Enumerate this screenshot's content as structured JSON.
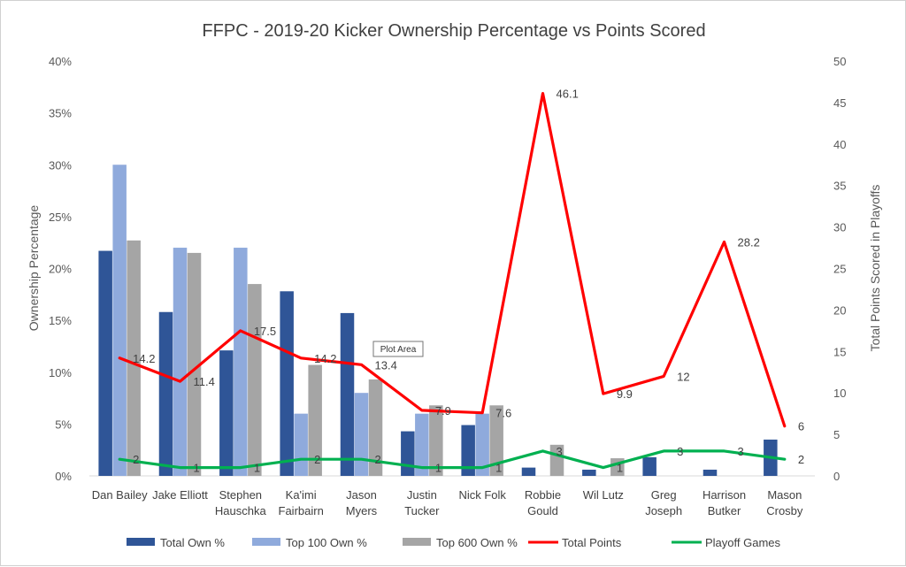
{
  "chart_data": {
    "type": "bar",
    "title": "FFPC - 2019-20 Kicker Ownership Percentage vs Points Scored",
    "ylabel": "Ownership Percentage",
    "y2label": "Total Points Scored in Playoffs",
    "ylim": [
      0,
      40
    ],
    "y2lim": [
      0,
      50
    ],
    "yticks": [
      "0%",
      "5%",
      "10%",
      "15%",
      "20%",
      "25%",
      "30%",
      "35%",
      "40%"
    ],
    "y2ticks": [
      "0",
      "5",
      "10",
      "15",
      "20",
      "25",
      "30",
      "35",
      "40",
      "45",
      "50"
    ],
    "categories": [
      [
        "Dan Bailey"
      ],
      [
        "Jake Elliott"
      ],
      [
        "Stephen",
        "Hauschka"
      ],
      [
        "Ka'imi",
        "Fairbairn"
      ],
      [
        "Jason",
        "Myers"
      ],
      [
        "Justin",
        "Tucker"
      ],
      [
        "Nick Folk"
      ],
      [
        "Robbie",
        "Gould"
      ],
      [
        "Wil Lutz"
      ],
      [
        "Greg",
        "Joseph"
      ],
      [
        "Harrison",
        "Butker"
      ],
      [
        "Mason",
        "Crosby"
      ]
    ],
    "bar_series": [
      {
        "name": "Total Own %",
        "color": "#2F5597",
        "values": [
          21.7,
          15.8,
          12.1,
          17.8,
          15.7,
          4.3,
          4.9,
          0.8,
          0.6,
          1.8,
          0.6,
          3.5
        ]
      },
      {
        "name": "Top 100 Own %",
        "color": "#8FAADC",
        "values": [
          30.0,
          22.0,
          22.0,
          6.0,
          8.0,
          6.0,
          6.0,
          0,
          0,
          0,
          0,
          0
        ]
      },
      {
        "name": "Top 600 Own %",
        "color": "#A5A5A5",
        "values": [
          22.7,
          21.5,
          18.5,
          10.7,
          9.3,
          6.8,
          6.8,
          3.0,
          1.7,
          0,
          0,
          0
        ]
      }
    ],
    "line_series": [
      {
        "name": "Total Points",
        "color": "#FF0000",
        "axis": "secondary",
        "values": [
          14.2,
          11.4,
          17.5,
          14.2,
          13.4,
          7.9,
          7.6,
          46.1,
          9.9,
          12,
          28.2,
          6
        ],
        "labels": [
          "14.2",
          "11.4",
          "17.5",
          "14.2",
          "13.4",
          "7.9",
          "7.6",
          "46.1",
          "9.9",
          "12",
          "28.2",
          "6"
        ]
      },
      {
        "name": "Playoff Games",
        "color": "#00B050",
        "axis": "secondary",
        "values": [
          2,
          1,
          1,
          2,
          2,
          1,
          1,
          3,
          1,
          3,
          3,
          2
        ],
        "labels": [
          "2",
          "1",
          "1",
          "2",
          "2",
          "1",
          "1",
          "3",
          "1",
          "3",
          "3",
          "2"
        ]
      }
    ],
    "legend": [
      "Total Own %",
      "Top 100 Own %",
      "Top 600 Own %",
      "Total Points",
      "Playoff Games"
    ],
    "legend_position": "bottom",
    "grid": false
  },
  "tooltip": {
    "text": "Plot Area"
  },
  "colors": {
    "title": "#404040",
    "tick": "#595959",
    "frame": "#d0d0d0"
  }
}
